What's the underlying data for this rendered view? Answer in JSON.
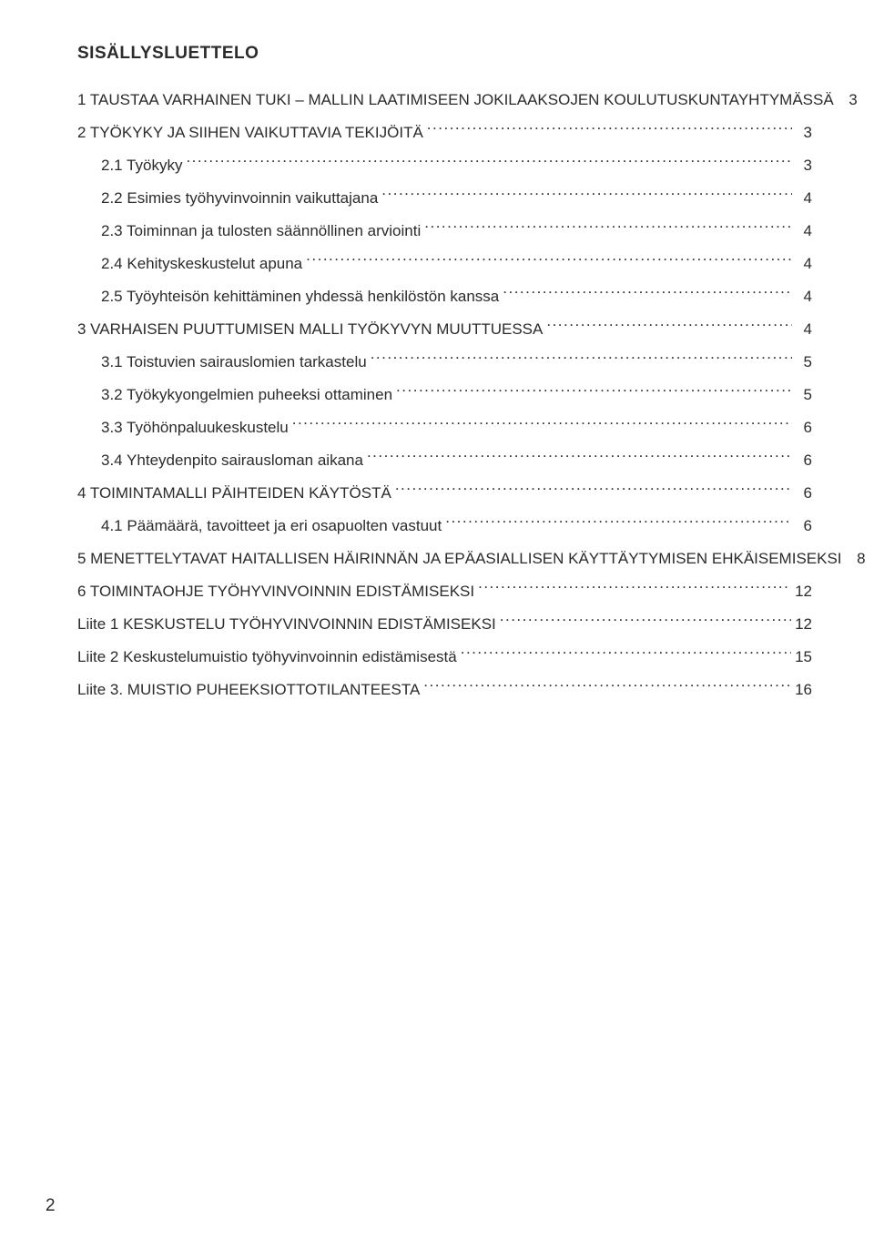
{
  "toc": {
    "title": "SISÄLLYSLUETTELO",
    "entries": [
      {
        "label": "1 TAUSTAA VARHAINEN TUKI – MALLIN LAATIMISEEN JOKILAAKSOJEN KOULUTUSKUNTAYHTYMÄSSÄ",
        "page": "3",
        "indent": 0
      },
      {
        "label": "2 TYÖKYKY JA SIIHEN VAIKUTTAVIA TEKIJÖITÄ",
        "page": "3",
        "indent": 0
      },
      {
        "label": "2.1 Työkyky",
        "page": "3",
        "indent": 1
      },
      {
        "label": "2.2 Esimies työhyvinvoinnin vaikuttajana",
        "page": "4",
        "indent": 1
      },
      {
        "label": "2.3 Toiminnan ja tulosten säännöllinen arviointi",
        "page": "4",
        "indent": 1
      },
      {
        "label": "2.4 Kehityskeskustelut apuna",
        "page": "4",
        "indent": 1
      },
      {
        "label": "2.5 Työyhteisön kehittäminen yhdessä henkilöstön kanssa",
        "page": "4",
        "indent": 1
      },
      {
        "label": "3 VARHAISEN PUUTTUMISEN MALLI TYÖKYVYN MUUTTUESSA",
        "page": "4",
        "indent": 0
      },
      {
        "label": "3.1 Toistuvien sairauslomien tarkastelu",
        "page": "5",
        "indent": 1
      },
      {
        "label": "3.2 Työkykyongelmien puheeksi ottaminen",
        "page": "5",
        "indent": 1
      },
      {
        "label": "3.3 Työhönpaluukeskustelu",
        "page": "6",
        "indent": 1
      },
      {
        "label": "3.4 Yhteydenpito sairausloman aikana",
        "page": "6",
        "indent": 1
      },
      {
        "label": "4 TOIMINTAMALLI PÄIHTEIDEN KÄYTÖSTÄ",
        "page": "6",
        "indent": 0
      },
      {
        "label": "4.1 Päämäärä, tavoitteet ja eri osapuolten vastuut",
        "page": "6",
        "indent": 1
      },
      {
        "label": "5 MENETTELYTAVAT HAITALLISEN HÄIRINNÄN JA EPÄASIALLISEN KÄYTTÄYTYMISEN EHKÄISEMISEKSI",
        "page": "8",
        "indent": 0
      },
      {
        "label": "6 TOIMINTAOHJE TYÖHYVINVOINNIN EDISTÄMISEKSI",
        "page": "12",
        "indent": 0
      },
      {
        "label": "Liite 1 KESKUSTELU TYÖHYVINVOINNIN EDISTÄMISEKSI",
        "page": "12",
        "indent": 0
      },
      {
        "label": "Liite 2 Keskustelumuistio työhyvinvoinnin edistämisestä",
        "page": "15",
        "indent": 0
      },
      {
        "label": "Liite 3. MUISTIO PUHEEKSIOTTOTILANTEESTA",
        "page": "16",
        "indent": 0
      }
    ],
    "page_number": "2",
    "colors": {
      "text": "#2b2b2b",
      "background": "#ffffff"
    },
    "font_sizes": {
      "title": 19,
      "entry": 17,
      "page_number": 19
    }
  }
}
